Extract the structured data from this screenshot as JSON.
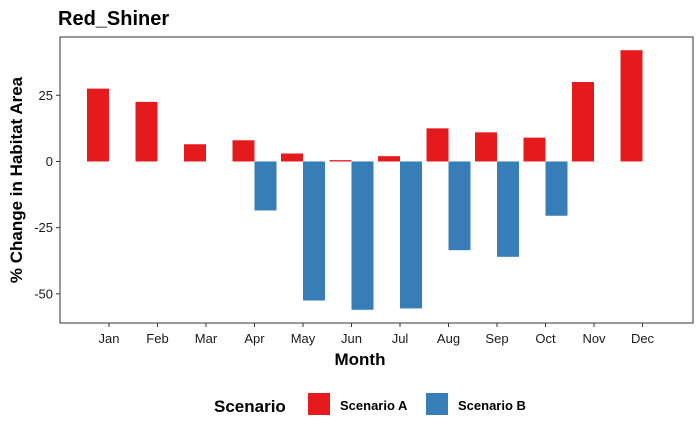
{
  "chart_data": {
    "type": "bar",
    "title": "Red_Shiner",
    "xlabel": "Month",
    "ylabel": "% Change in Habitat Area",
    "categories": [
      "Jan",
      "Feb",
      "Mar",
      "Apr",
      "May",
      "Jun",
      "Jul",
      "Aug",
      "Sep",
      "Oct",
      "Nov",
      "Dec"
    ],
    "series": [
      {
        "name": "Scenario A",
        "color": "#E41A1C",
        "values": [
          27.5,
          22.5,
          6.5,
          8,
          3,
          0.5,
          2,
          12.5,
          11,
          9,
          30,
          42
        ]
      },
      {
        "name": "Scenario B",
        "color": "#377EB8",
        "values": [
          null,
          null,
          null,
          -18.5,
          -52.5,
          -56,
          -55.5,
          -33.5,
          -36,
          -20.5,
          null,
          null
        ]
      }
    ],
    "ylim": [
      -61,
      47
    ],
    "yticks": [
      -50,
      -25,
      0,
      25
    ],
    "ytick_labels": [
      "-50",
      "-25",
      "0",
      "25"
    ],
    "grid": false,
    "legend": {
      "title": "Scenario",
      "position": "bottom"
    }
  }
}
